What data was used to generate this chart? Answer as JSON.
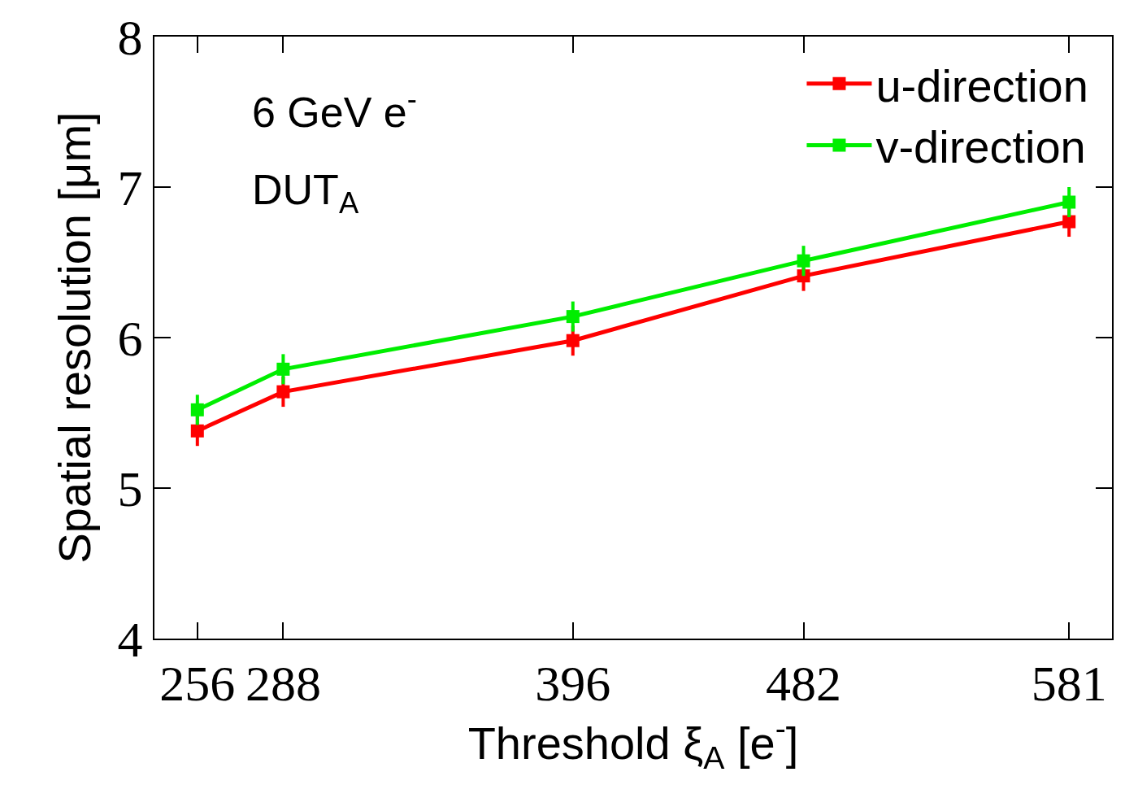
{
  "chart_data": {
    "type": "line",
    "xlabel": "Threshold ξ$_{A}$ [e$^{-}$]",
    "ylabel": "Spatial resolution [μm]",
    "x": [
      256,
      288,
      396,
      482,
      581
    ],
    "series": [
      {
        "name": "u-direction",
        "color": "#ff0000",
        "values": [
          5.38,
          5.64,
          5.98,
          6.41,
          6.77
        ],
        "errors": [
          0.1,
          0.1,
          0.1,
          0.1,
          0.1
        ]
      },
      {
        "name": "v-direction",
        "color": "#00ee00",
        "values": [
          5.52,
          5.79,
          6.14,
          6.51,
          6.9
        ],
        "errors": [
          0.1,
          0.1,
          0.1,
          0.1,
          0.1
        ]
      }
    ],
    "xlim": [
      240,
      597
    ],
    "xticks": [
      256,
      288,
      396,
      482,
      581
    ],
    "ylim": [
      4,
      8
    ],
    "yticks": [
      4,
      5,
      6,
      7,
      8
    ],
    "annotations": [
      "6 GeV e$^{-}$",
      "DUT$_{A}$"
    ],
    "legend": "top right",
    "marker": "square",
    "line_style": "solid"
  }
}
